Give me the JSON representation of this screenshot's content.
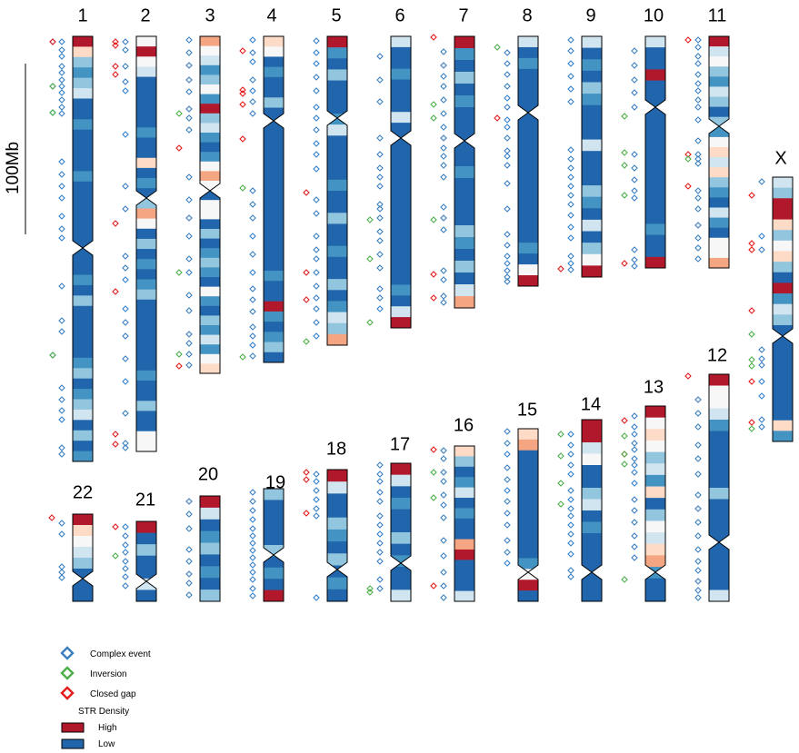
{
  "scale_bar": {
    "label": "100Mb"
  },
  "legend": {
    "markers": [
      {
        "key": "complex",
        "label": "Complex event",
        "color": "#3a7ec0"
      },
      {
        "key": "inversion",
        "label": "Inversion",
        "color": "#4daf4a"
      },
      {
        "key": "closed",
        "label": "Closed gap",
        "color": "#e41a1c"
      }
    ],
    "density_title": "STR Density",
    "density": [
      {
        "label": "High",
        "color": "#b2182b"
      },
      {
        "label": "Low",
        "color": "#2166ac"
      }
    ]
  },
  "palette": {
    "darkred": "#b2182b",
    "red": "#d6604d",
    "salmon": "#f4a582",
    "peach": "#fddbc7",
    "white": "#f7f7f7",
    "lightblue": "#d1e5f0",
    "skyblue": "#92c5de",
    "midblue": "#4393c3",
    "blue": "#2166ac"
  },
  "chromosomes": [
    {
      "name": "1",
      "label": "1"
    },
    {
      "name": "2",
      "label": "2"
    },
    {
      "name": "3",
      "label": "3"
    },
    {
      "name": "4",
      "label": "4"
    },
    {
      "name": "5",
      "label": "5"
    },
    {
      "name": "6",
      "label": "6"
    },
    {
      "name": "7",
      "label": "7"
    },
    {
      "name": "8",
      "label": "8"
    },
    {
      "name": "9",
      "label": "9"
    },
    {
      "name": "10",
      "label": "10"
    },
    {
      "name": "11",
      "label": "11"
    },
    {
      "name": "X",
      "label": "X"
    },
    {
      "name": "12",
      "label": "12"
    },
    {
      "name": "13",
      "label": "13"
    },
    {
      "name": "14",
      "label": "14"
    },
    {
      "name": "15",
      "label": "15"
    },
    {
      "name": "16",
      "label": "16"
    },
    {
      "name": "17",
      "label": "17"
    },
    {
      "name": "18",
      "label": "18"
    },
    {
      "name": "19",
      "label": "19"
    },
    {
      "name": "20",
      "label": "20"
    },
    {
      "name": "21",
      "label": "21"
    },
    {
      "name": "22",
      "label": "22"
    }
  ]
}
